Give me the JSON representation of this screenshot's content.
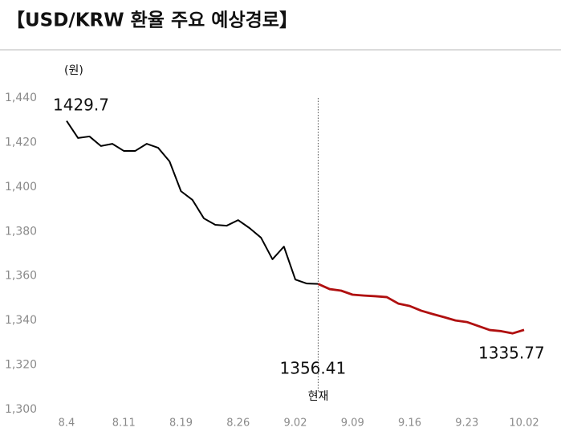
{
  "chart_data": {
    "type": "line",
    "title": "【USD/KRW 환율 주요 예상경로】",
    "y_label": "(원)",
    "marker_label": "현재",
    "categories": [
      "8.4",
      null,
      null,
      null,
      null,
      "8.11",
      null,
      null,
      null,
      null,
      "8.19",
      null,
      null,
      null,
      null,
      "8.26",
      null,
      null,
      null,
      null,
      "9.02",
      null,
      null,
      null,
      null,
      "9.09",
      null,
      null,
      null,
      null,
      "9.16",
      null,
      null,
      null,
      null,
      "9.23",
      null,
      null,
      null,
      null,
      "10.02"
    ],
    "series": [
      {
        "color": "#000000",
        "values": [
          1429.7,
          1422,
          1422.7,
          1418.4,
          1419.4,
          1416.2,
          1416.2,
          1419.4,
          1417.6,
          1411.5,
          1398.1,
          1394.2,
          1385.9,
          1383,
          1382.6,
          1385.1,
          1381.5,
          1377.2,
          1367.5,
          1373.2,
          1358.4,
          1356.6,
          1356.41,
          null,
          null,
          null,
          null,
          null,
          null,
          null,
          null,
          null,
          null,
          null,
          null,
          null,
          null,
          null,
          null,
          null,
          null
        ]
      },
      {
        "color": "#b01010",
        "values": [
          null,
          null,
          null,
          null,
          null,
          null,
          null,
          null,
          null,
          null,
          null,
          null,
          null,
          null,
          null,
          null,
          null,
          null,
          null,
          null,
          null,
          null,
          1356.41,
          1354.1,
          1353.4,
          1351.6,
          1351.2,
          1350.9,
          1350.5,
          1347.6,
          1346.5,
          1344.4,
          1342.9,
          1341.5,
          1340,
          1339.3,
          1337.5,
          1335.7,
          1335.2,
          1334.2,
          1335.77
        ]
      }
    ],
    "ylim": [
      1300,
      1440
    ],
    "yticks": [
      {
        "value": 1300,
        "label": "1,300"
      },
      {
        "value": 1320,
        "label": "1,320"
      },
      {
        "value": 1340,
        "label": "1,340"
      },
      {
        "value": 1360,
        "label": "1,360"
      },
      {
        "value": 1380,
        "label": "1,380"
      },
      {
        "value": 1400,
        "label": "1,400"
      },
      {
        "value": 1420,
        "label": "1,420"
      },
      {
        "value": 1440,
        "label": "1,440"
      }
    ],
    "grid": false
  }
}
